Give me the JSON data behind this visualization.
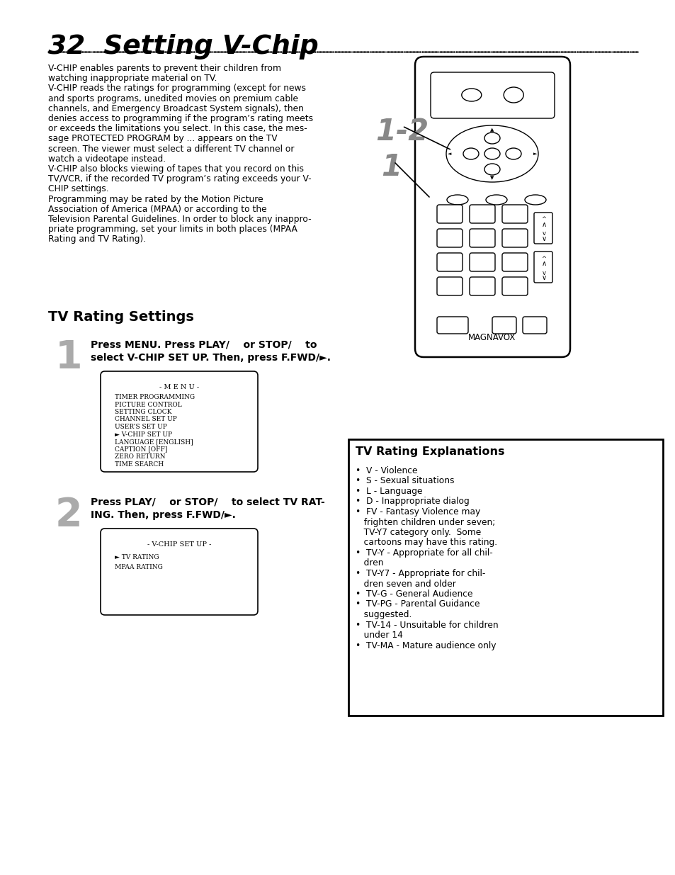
{
  "title": "32  Setting V-Chip",
  "bg_color": "#ffffff",
  "text_color": "#000000",
  "body_text": [
    "V-CHIP enables parents to prevent their children from",
    "watching inappropriate material on TV.",
    "V-CHIP reads the ratings for programming (except for news",
    "and sports programs, unedited movies on premium cable",
    "channels, and Emergency Broadcast System signals), then",
    "denies access to programming if the program’s rating meets",
    "or exceeds the limitations you select. In this case, the mes-",
    "sage PROTECTED PROGRAM by ... appears on the TV",
    "screen. The viewer must select a different TV channel or",
    "watch a videotape instead.",
    "V-CHIP also blocks viewing of tapes that you record on this",
    "TV/VCR, if the recorded TV program’s rating exceeds your V-",
    "CHIP settings.",
    "Programming may be rated by the Motion Picture",
    "Association of America (MPAA) or according to the",
    "Television Parental Guidelines. In order to block any inappro-",
    "priate programming, set your limits in both places (MPAA",
    "Rating and TV Rating)."
  ],
  "section_title": "TV Rating Settings",
  "menu_title": "- M E N U -",
  "menu_items": [
    "TIMER PROGRAMMING",
    "PICTURE CONTROL",
    "SETTING CLOCK",
    "CHANNEL SET UP",
    "USER’S SET UP",
    "► V-CHIP SET UP",
    "LANGUAGE [ENGLISH]",
    "CAPTION [OFF]",
    "ZERO RETURN",
    "TIME SEARCH"
  ],
  "vchip_title": "- V-CHIP SET UP -",
  "vchip_items": [
    "► TV RATING",
    "MPAA RATING"
  ],
  "explanations_title": "TV Rating Explanations",
  "exp_lines": [
    "•  V - Violence",
    "•  S - Sexual situations",
    "•  L - Language",
    "•  D - Inappropriate dialog",
    "•  FV - Fantasy Violence may",
    "   frighten children under seven;",
    "   TV-Y7 category only.  Some",
    "   cartoons may have this rating.",
    "•  TV-Y - Appropriate for all chil-",
    "   dren",
    "•  TV-Y7 - Appropriate for chil-",
    "   dren seven and older",
    "•  TV-G - General Audience",
    "•  TV-PG - Parental Guidance",
    "   suggested.",
    "•  TV-14 - Unsuitable for children",
    "   under 14",
    "•  TV-MA - Mature audience only"
  ]
}
